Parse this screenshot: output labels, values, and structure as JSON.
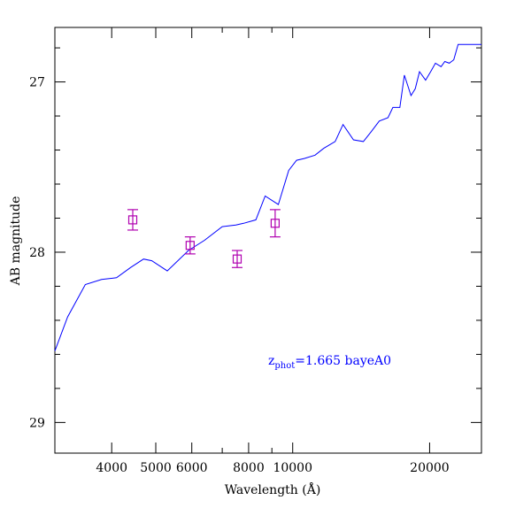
{
  "chart_data": {
    "type": "line",
    "xlabel": "Wavelength (Å)",
    "ylabel": "AB magnitude",
    "x_scale": "log",
    "y_inverted": true,
    "xlim": [
      3000,
      26000
    ],
    "ylim": [
      29.18,
      26.68
    ],
    "x_ticks": [
      {
        "value": 4000,
        "label": "4000"
      },
      {
        "value": 5000,
        "label": "5000"
      },
      {
        "value": 6000,
        "label": "6000"
      },
      {
        "value": 8000,
        "label": "8000"
      },
      {
        "value": 10000,
        "label": "10000"
      },
      {
        "value": 20000,
        "label": "20000"
      }
    ],
    "x_minor_ticks": [
      3000,
      7000,
      9000,
      30000
    ],
    "y_ticks": [
      {
        "value": 27,
        "label": "27"
      },
      {
        "value": 28,
        "label": "28"
      },
      {
        "value": 29,
        "label": "29"
      }
    ],
    "y_minor_step": 0.2,
    "series": [
      {
        "color": "#0000ff",
        "x": [
          3000,
          3200,
          3500,
          3800,
          4100,
          4400,
          4700,
          4900,
          5300,
          5900,
          6400,
          7000,
          7500,
          7800,
          8300,
          8700,
          9300,
          9800,
          10200,
          10600,
          11200,
          11700,
          12400,
          12900,
          13600,
          14300,
          14900,
          15500,
          16200,
          16600,
          17200,
          17600,
          18200,
          18600,
          19000,
          19600,
          20100,
          20600,
          21200,
          21600,
          22100,
          22600,
          23100,
          23500,
          24100,
          24600,
          25000,
          25500,
          26000
        ],
        "y": [
          28.58,
          28.38,
          28.19,
          28.16,
          28.15,
          28.09,
          28.04,
          28.05,
          28.11,
          27.99,
          27.93,
          27.85,
          27.84,
          27.83,
          27.81,
          27.67,
          27.72,
          27.52,
          27.46,
          27.45,
          27.43,
          27.39,
          27.35,
          27.25,
          27.34,
          27.35,
          27.29,
          27.23,
          27.21,
          27.15,
          27.15,
          26.96,
          27.08,
          27.04,
          26.94,
          26.99,
          26.94,
          26.89,
          26.91,
          26.88,
          26.89,
          26.87,
          26.78,
          26.78,
          26.78,
          26.78,
          26.78,
          26.78,
          26.78
        ]
      }
    ],
    "points": [
      {
        "x": 4450,
        "y": 27.81,
        "yerr": 0.06
      },
      {
        "x": 5950,
        "y": 27.96,
        "yerr": 0.05
      },
      {
        "x": 7550,
        "y": 28.04,
        "yerr": 0.05
      },
      {
        "x": 9150,
        "y": 27.83,
        "yerr": 0.08
      }
    ],
    "annotation": {
      "prefix": "z",
      "subscript": "phot",
      "text": "=1.665 bayeA0"
    }
  }
}
